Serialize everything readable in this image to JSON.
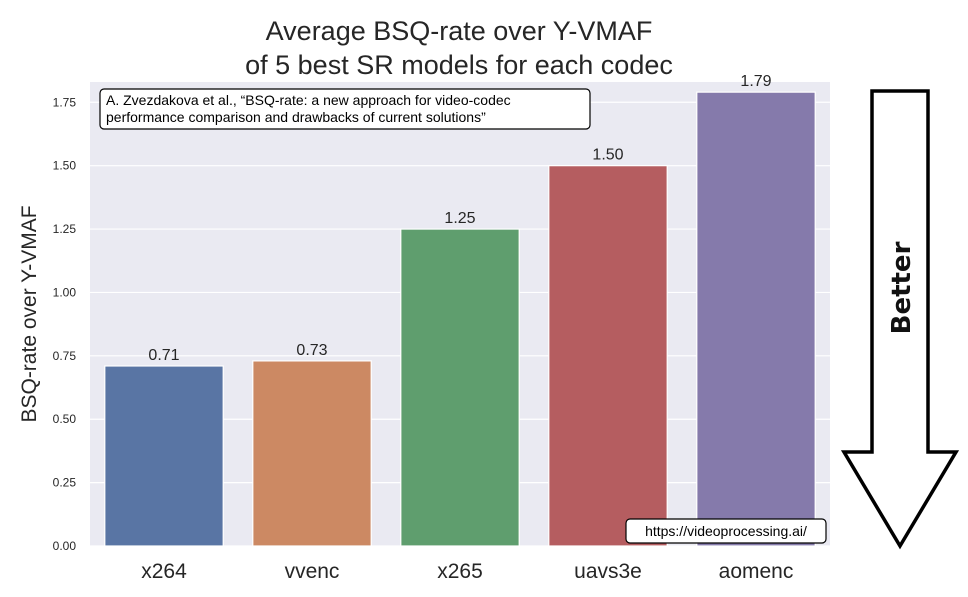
{
  "chart_data": {
    "type": "bar",
    "title_lines": [
      "Average BSQ-rate over Y-VMAF",
      "of 5 best SR models for each codec"
    ],
    "ylabel": "BSQ-rate over Y-VMAF",
    "xlabel": "",
    "categories": [
      "x264",
      "vvenc",
      "x265",
      "uavs3e",
      "aomenc"
    ],
    "values": [
      0.71,
      0.73,
      1.25,
      1.5,
      1.79
    ],
    "data_labels": [
      "0.71",
      "0.73",
      "1.25",
      "1.50",
      "1.79"
    ],
    "colors": [
      "#5975a4",
      "#cc8963",
      "#5f9e6e",
      "#b55d60",
      "#857aab"
    ],
    "ylim": [
      0,
      1.83
    ],
    "yticks": [
      0,
      0.25,
      0.5,
      0.75,
      1.0,
      1.25,
      1.5,
      1.75
    ],
    "ytick_labels": [
      "0.00",
      "0.25",
      "0.50",
      "0.75",
      "1.00",
      "1.25",
      "1.50",
      "1.75"
    ],
    "grid": true,
    "background": "#eaeaf2",
    "annotations": {
      "citation_lines": [
        "A. Zvezdakova et al., “BSQ-rate: a new approach for video-codec",
        "performance comparison and drawbacks of current solutions”"
      ],
      "source": "https://videoprocessing.ai/"
    },
    "side_arrow": {
      "label": "Better",
      "direction": "down"
    }
  }
}
